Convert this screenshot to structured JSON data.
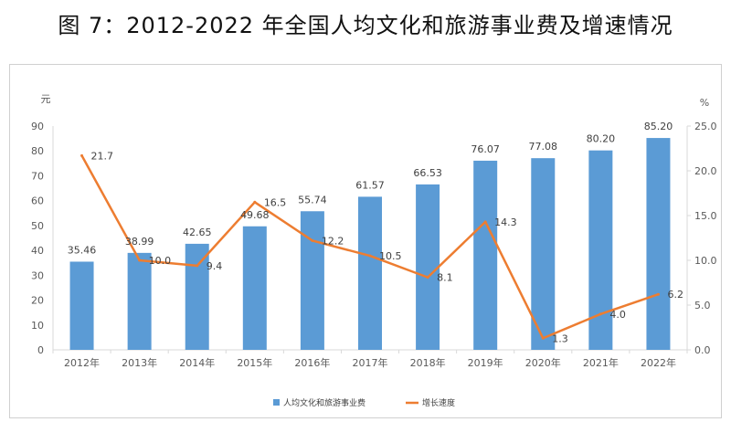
{
  "chart_data": {
    "type": "bar+line",
    "title": "图 7：2012-2022 年全国人均文化和旅游事业费及增速情况",
    "categories": [
      "2012年",
      "2013年",
      "2014年",
      "2015年",
      "2016年",
      "2017年",
      "2018年",
      "2019年",
      "2020年",
      "2021年",
      "2022年"
    ],
    "series": [
      {
        "name": "人均文化和旅游事业费",
        "type": "bar",
        "axis": "left",
        "color": "#5b9bd5",
        "values": [
          35.46,
          38.99,
          42.65,
          49.68,
          55.74,
          61.57,
          66.53,
          76.07,
          77.08,
          80.2,
          85.2
        ],
        "labels": [
          "35.46",
          "38.99",
          "42.65",
          "49.68",
          "55.74",
          "61.57",
          "66.53",
          "76.07",
          "77.08",
          "80.20",
          "85.20"
        ]
      },
      {
        "name": "增长速度",
        "type": "line",
        "axis": "right",
        "color": "#ed7d31",
        "values": [
          21.7,
          10.0,
          9.4,
          16.5,
          12.2,
          10.5,
          8.1,
          14.3,
          1.3,
          4.0,
          6.2
        ],
        "labels": [
          "21.7",
          "10.0",
          "9.4",
          "16.5",
          "12.2",
          "10.5",
          "8.1",
          "14.3",
          "1.3",
          "4.0",
          "6.2"
        ]
      }
    ],
    "y_left": {
      "unit": "元",
      "lim": [
        0,
        90
      ],
      "ticks": [
        "0",
        "10",
        "20",
        "30",
        "40",
        "50",
        "60",
        "70",
        "80",
        "90"
      ]
    },
    "y_right": {
      "unit": "%",
      "lim": [
        0,
        25
      ],
      "ticks": [
        "0.0",
        "5.0",
        "10.0",
        "15.0",
        "20.0",
        "25.0"
      ]
    },
    "grid": false,
    "legend": "bottom"
  }
}
